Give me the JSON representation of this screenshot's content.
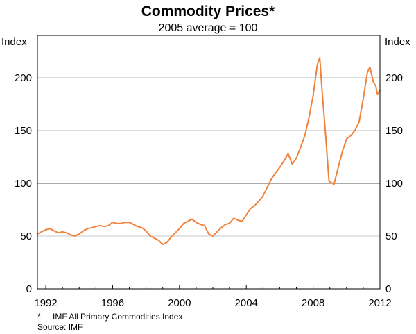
{
  "chart_data": {
    "type": "line",
    "title": "Commodity Prices*",
    "subtitle": "2005 average = 100",
    "ylabel_left": "Index",
    "ylabel_right": "Index",
    "xlim": [
      1991.5,
      2012
    ],
    "ylim": [
      0,
      240
    ],
    "yticks": [
      0,
      50,
      100,
      150,
      200
    ],
    "xticks": [
      1992,
      1996,
      2000,
      2004,
      2008,
      2012
    ],
    "reference_line": 100,
    "grid": true,
    "series": [
      {
        "name": "IMF All Primary Commodities Index",
        "color": "#f0823c",
        "points": [
          [
            1991.5,
            52
          ],
          [
            1991.75,
            54
          ],
          [
            1992.0,
            56
          ],
          [
            1992.25,
            57
          ],
          [
            1992.5,
            55
          ],
          [
            1992.75,
            53
          ],
          [
            1993.0,
            54
          ],
          [
            1993.25,
            53
          ],
          [
            1993.5,
            51
          ],
          [
            1993.75,
            50
          ],
          [
            1994.0,
            52
          ],
          [
            1994.25,
            55
          ],
          [
            1994.5,
            57
          ],
          [
            1994.75,
            58
          ],
          [
            1995.0,
            59
          ],
          [
            1995.25,
            60
          ],
          [
            1995.5,
            59
          ],
          [
            1995.75,
            60
          ],
          [
            1996.0,
            63
          ],
          [
            1996.25,
            62
          ],
          [
            1996.5,
            62
          ],
          [
            1996.75,
            63
          ],
          [
            1997.0,
            63
          ],
          [
            1997.25,
            61
          ],
          [
            1997.5,
            59
          ],
          [
            1997.75,
            58
          ],
          [
            1998.0,
            55
          ],
          [
            1998.25,
            50
          ],
          [
            1998.5,
            48
          ],
          [
            1998.75,
            46
          ],
          [
            1999.0,
            42
          ],
          [
            1999.25,
            44
          ],
          [
            1999.5,
            49
          ],
          [
            1999.75,
            53
          ],
          [
            2000.0,
            57
          ],
          [
            2000.25,
            62
          ],
          [
            2000.5,
            64
          ],
          [
            2000.75,
            66
          ],
          [
            2001.0,
            63
          ],
          [
            2001.25,
            61
          ],
          [
            2001.5,
            60
          ],
          [
            2001.75,
            52
          ],
          [
            2002.0,
            50
          ],
          [
            2002.25,
            54
          ],
          [
            2002.5,
            58
          ],
          [
            2002.75,
            61
          ],
          [
            2003.0,
            62
          ],
          [
            2003.25,
            67
          ],
          [
            2003.5,
            65
          ],
          [
            2003.75,
            64
          ],
          [
            2004.0,
            70
          ],
          [
            2004.25,
            76
          ],
          [
            2004.5,
            79
          ],
          [
            2004.75,
            83
          ],
          [
            2005.0,
            88
          ],
          [
            2005.25,
            96
          ],
          [
            2005.5,
            104
          ],
          [
            2005.75,
            110
          ],
          [
            2006.0,
            115
          ],
          [
            2006.25,
            121
          ],
          [
            2006.5,
            128
          ],
          [
            2006.75,
            118
          ],
          [
            2007.0,
            124
          ],
          [
            2007.25,
            134
          ],
          [
            2007.5,
            145
          ],
          [
            2007.75,
            162
          ],
          [
            2008.0,
            183
          ],
          [
            2008.25,
            212
          ],
          [
            2008.4,
            219
          ],
          [
            2008.5,
            195
          ],
          [
            2008.75,
            145
          ],
          [
            2008.95,
            102
          ],
          [
            2009.25,
            99
          ],
          [
            2009.5,
            115
          ],
          [
            2009.75,
            130
          ],
          [
            2010.0,
            142
          ],
          [
            2010.25,
            145
          ],
          [
            2010.5,
            150
          ],
          [
            2010.75,
            158
          ],
          [
            2011.0,
            180
          ],
          [
            2011.25,
            205
          ],
          [
            2011.4,
            210
          ],
          [
            2011.6,
            196
          ],
          [
            2011.75,
            192
          ],
          [
            2011.85,
            184
          ],
          [
            2012.0,
            188
          ]
        ]
      }
    ]
  },
  "footnote": {
    "marker": "*",
    "text": "IMF All Primary Commodities Index",
    "source": "Source: IMF"
  }
}
